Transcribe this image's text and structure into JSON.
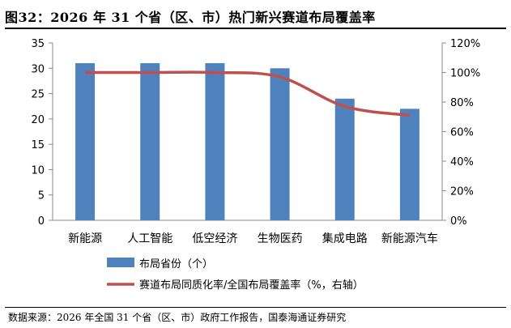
{
  "source": "数据来源：2026 年全国 31 个省（区、市）政府工作报告，国泰海通证券研究",
  "chart_data": {
    "type": "bar",
    "title": "图32：2026 年 31 个省（区、市）热门新兴赛道布局覆盖率",
    "categories": [
      "新能源",
      "人工智能",
      "低空经济",
      "生物医药",
      "集成电路",
      "新能源汽车"
    ],
    "series": [
      {
        "name": "布局省份（个）",
        "kind": "bar",
        "axis": "left",
        "color": "#4F81BD",
        "values": [
          31,
          31,
          31,
          30,
          24,
          22
        ]
      },
      {
        "name": "赛道布局同质化率/全国布局覆盖率（%，右轴）",
        "kind": "line",
        "axis": "right",
        "color": "#C0504D",
        "values": [
          100,
          100,
          100,
          97,
          77,
          71
        ]
      }
    ],
    "y_left": {
      "lim": [
        0,
        35
      ],
      "ticks": [
        "0",
        "5",
        "10",
        "15",
        "20",
        "25",
        "30",
        "35"
      ]
    },
    "y_right": {
      "lim": [
        0,
        120
      ],
      "ticks": [
        "0%",
        "20%",
        "40%",
        "60%",
        "80%",
        "100%",
        "120%"
      ]
    },
    "grid": false,
    "legend_position": "bottom"
  }
}
